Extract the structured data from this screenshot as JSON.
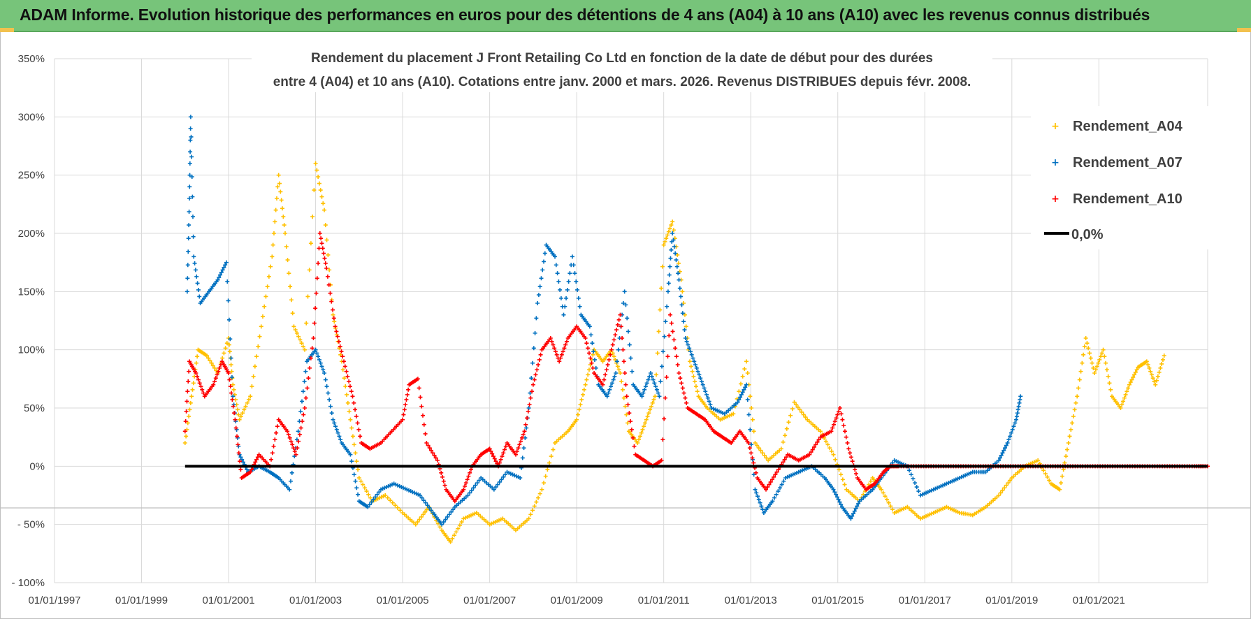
{
  "header": {
    "title": "ADAM Informe. Evolution historique des performances en euros pour des détentions de 4 ans (A04) à 10 ans (A10) avec les revenus connus distribués"
  },
  "chart_data": {
    "type": "scatter",
    "title_line1": "Rendement du placement J Front Retailing Co Ltd en fonction de la date de début pour des durées",
    "title_line2": "entre 4 (A04) et 10 ans (A10).  Cotations entre janv. 2000 et mars. 2026. Revenus DISTRIBUES depuis févr. 2008.",
    "x_axis": {
      "min_year": 1997.0,
      "max_year": 2023.5,
      "tick_years": [
        1997,
        1999,
        2001,
        2003,
        2005,
        2007,
        2009,
        2011,
        2013,
        2015,
        2017,
        2019,
        2021
      ],
      "tick_labels": [
        "01/01/1997",
        "01/01/1999",
        "01/01/2001",
        "01/01/2003",
        "01/01/2005",
        "01/01/2007",
        "01/01/2009",
        "01/01/2011",
        "01/01/2013",
        "01/01/2015",
        "01/01/2017",
        "01/01/2019",
        "01/01/2021"
      ]
    },
    "y_axis": {
      "min": -100,
      "max": 350,
      "tick_values": [
        -100,
        -50,
        0,
        50,
        100,
        150,
        200,
        250,
        300,
        350
      ],
      "tick_labels": [
        "- 100%",
        "- 50%",
        "0%",
        "50%",
        "100%",
        "150%",
        "200%",
        "250%",
        "300%",
        "350%"
      ]
    },
    "grid": true,
    "legend_position": "top-right",
    "legend": [
      {
        "key": "A04",
        "label": "Rendement_A04"
      },
      {
        "key": "A07",
        "label": "Rendement_A07"
      },
      {
        "key": "A10",
        "label": "Rendement_A10"
      },
      {
        "key": "zero",
        "label": "0,0%"
      }
    ],
    "colors": {
      "A04": "#ffc000",
      "A07": "#0070c0",
      "A10": "#ff0000",
      "zero": "#000000",
      "grid": "#d9d9d9"
    },
    "zero_line": {
      "value": 0,
      "x_start": 2000.0,
      "x_end": 2023.5
    },
    "series": [
      {
        "name": "Rendement_A04",
        "key": "A04",
        "points": [
          [
            2000.0,
            20
          ],
          [
            2000.15,
            60
          ],
          [
            2000.3,
            100
          ],
          [
            2000.5,
            95
          ],
          [
            2000.75,
            80
          ],
          [
            2001.0,
            110
          ],
          [
            2001.1,
            70
          ],
          [
            2001.25,
            40
          ],
          [
            2001.5,
            60
          ],
          [
            2001.75,
            120
          ],
          [
            2002.0,
            180
          ],
          [
            2002.15,
            250
          ],
          [
            2002.3,
            200
          ],
          [
            2002.5,
            120
          ],
          [
            2002.75,
            100
          ],
          [
            2003.0,
            260
          ],
          [
            2003.2,
            220
          ],
          [
            2003.4,
            130
          ],
          [
            2003.6,
            90
          ],
          [
            2003.8,
            40
          ],
          [
            2004.0,
            -10
          ],
          [
            2004.3,
            -30
          ],
          [
            2004.6,
            -25
          ],
          [
            2005.0,
            -40
          ],
          [
            2005.3,
            -50
          ],
          [
            2005.6,
            -35
          ],
          [
            2005.9,
            -55
          ],
          [
            2006.1,
            -65
          ],
          [
            2006.4,
            -45
          ],
          [
            2006.7,
            -40
          ],
          [
            2007.0,
            -50
          ],
          [
            2007.3,
            -45
          ],
          [
            2007.6,
            -55
          ],
          [
            2007.9,
            -45
          ],
          [
            2008.2,
            -20
          ],
          [
            2008.5,
            20
          ],
          [
            2008.8,
            30
          ],
          [
            2009.0,
            40
          ],
          [
            2009.2,
            70
          ],
          [
            2009.4,
            100
          ],
          [
            2009.6,
            90
          ],
          [
            2009.8,
            100
          ],
          [
            2010.0,
            80
          ],
          [
            2010.2,
            30
          ],
          [
            2010.4,
            20
          ],
          [
            2010.6,
            40
          ],
          [
            2010.8,
            60
          ],
          [
            2011.0,
            190
          ],
          [
            2011.2,
            210
          ],
          [
            2011.4,
            160
          ],
          [
            2011.6,
            90
          ],
          [
            2011.8,
            60
          ],
          [
            2012.0,
            50
          ],
          [
            2012.3,
            40
          ],
          [
            2012.6,
            45
          ],
          [
            2012.9,
            90
          ],
          [
            2013.1,
            20
          ],
          [
            2013.4,
            5
          ],
          [
            2013.7,
            15
          ],
          [
            2014.0,
            55
          ],
          [
            2014.3,
            40
          ],
          [
            2014.6,
            30
          ],
          [
            2014.9,
            10
          ],
          [
            2015.2,
            -20
          ],
          [
            2015.5,
            -30
          ],
          [
            2015.8,
            -10
          ],
          [
            2016.0,
            -20
          ],
          [
            2016.3,
            -40
          ],
          [
            2016.6,
            -35
          ],
          [
            2016.9,
            -45
          ],
          [
            2017.2,
            -40
          ],
          [
            2017.5,
            -35
          ],
          [
            2017.8,
            -40
          ],
          [
            2018.1,
            -42
          ],
          [
            2018.4,
            -35
          ],
          [
            2018.7,
            -25
          ],
          [
            2019.0,
            -10
          ],
          [
            2019.3,
            0
          ],
          [
            2019.6,
            5
          ],
          [
            2019.9,
            -15
          ],
          [
            2020.1,
            -20
          ],
          [
            2020.3,
            20
          ],
          [
            2020.5,
            60
          ],
          [
            2020.7,
            110
          ],
          [
            2020.9,
            80
          ],
          [
            2021.1,
            100
          ],
          [
            2021.3,
            60
          ],
          [
            2021.5,
            50
          ],
          [
            2021.7,
            70
          ],
          [
            2021.9,
            85
          ],
          [
            2022.1,
            90
          ],
          [
            2022.3,
            70
          ],
          [
            2022.5,
            95
          ]
        ]
      },
      {
        "name": "Rendement_A07",
        "key": "A07",
        "points": [
          [
            2000.05,
            150
          ],
          [
            2000.1,
            230
          ],
          [
            2000.13,
            300
          ],
          [
            2000.2,
            180
          ],
          [
            2000.35,
            140
          ],
          [
            2000.55,
            150
          ],
          [
            2000.75,
            160
          ],
          [
            2000.95,
            175
          ],
          [
            2001.1,
            60
          ],
          [
            2001.25,
            10
          ],
          [
            2001.45,
            -5
          ],
          [
            2001.7,
            0
          ],
          [
            2001.95,
            -5
          ],
          [
            2002.15,
            -10
          ],
          [
            2002.4,
            -20
          ],
          [
            2002.6,
            30
          ],
          [
            2002.8,
            90
          ],
          [
            2003.0,
            100
          ],
          [
            2003.2,
            80
          ],
          [
            2003.4,
            40
          ],
          [
            2003.6,
            20
          ],
          [
            2003.8,
            10
          ],
          [
            2004.0,
            -30
          ],
          [
            2004.2,
            -35
          ],
          [
            2004.5,
            -20
          ],
          [
            2004.8,
            -15
          ],
          [
            2005.1,
            -20
          ],
          [
            2005.4,
            -25
          ],
          [
            2005.7,
            -40
          ],
          [
            2005.9,
            -50
          ],
          [
            2006.2,
            -35
          ],
          [
            2006.5,
            -25
          ],
          [
            2006.8,
            -10
          ],
          [
            2007.1,
            -20
          ],
          [
            2007.4,
            -5
          ],
          [
            2007.7,
            -10
          ],
          [
            2007.9,
            50
          ],
          [
            2008.1,
            140
          ],
          [
            2008.3,
            190
          ],
          [
            2008.5,
            180
          ],
          [
            2008.7,
            130
          ],
          [
            2008.9,
            180
          ],
          [
            2009.1,
            130
          ],
          [
            2009.3,
            120
          ],
          [
            2009.5,
            70
          ],
          [
            2009.7,
            60
          ],
          [
            2009.9,
            80
          ],
          [
            2010.1,
            150
          ],
          [
            2010.3,
            70
          ],
          [
            2010.5,
            60
          ],
          [
            2010.7,
            80
          ],
          [
            2010.9,
            60
          ],
          [
            2011.1,
            150
          ],
          [
            2011.2,
            200
          ],
          [
            2011.35,
            160
          ],
          [
            2011.5,
            110
          ],
          [
            2011.7,
            90
          ],
          [
            2011.9,
            70
          ],
          [
            2012.1,
            50
          ],
          [
            2012.4,
            45
          ],
          [
            2012.7,
            55
          ],
          [
            2012.9,
            70
          ],
          [
            2013.1,
            -20
          ],
          [
            2013.3,
            -40
          ],
          [
            2013.5,
            -30
          ],
          [
            2013.8,
            -10
          ],
          [
            2014.1,
            -5
          ],
          [
            2014.4,
            0
          ],
          [
            2014.7,
            -10
          ],
          [
            2014.9,
            -20
          ],
          [
            2015.1,
            -35
          ],
          [
            2015.3,
            -45
          ],
          [
            2015.5,
            -30
          ],
          [
            2015.8,
            -20
          ],
          [
            2016.0,
            -10
          ],
          [
            2016.3,
            5
          ],
          [
            2016.6,
            0
          ],
          [
            2016.9,
            -25
          ],
          [
            2017.2,
            -20
          ],
          [
            2017.5,
            -15
          ],
          [
            2017.8,
            -10
          ],
          [
            2018.1,
            -5
          ],
          [
            2018.4,
            -5
          ],
          [
            2018.7,
            5
          ],
          [
            2018.9,
            20
          ],
          [
            2019.1,
            40
          ],
          [
            2019.2,
            60
          ]
        ]
      },
      {
        "name": "Rendement_A10",
        "key": "A10",
        "points": [
          [
            2000.0,
            30
          ],
          [
            2000.1,
            90
          ],
          [
            2000.25,
            80
          ],
          [
            2000.45,
            60
          ],
          [
            2000.65,
            70
          ],
          [
            2000.85,
            90
          ],
          [
            2001.0,
            80
          ],
          [
            2001.15,
            40
          ],
          [
            2001.3,
            -10
          ],
          [
            2001.5,
            -5
          ],
          [
            2001.7,
            10
          ],
          [
            2001.95,
            0
          ],
          [
            2002.15,
            40
          ],
          [
            2002.35,
            30
          ],
          [
            2002.55,
            10
          ],
          [
            2002.75,
            50
          ],
          [
            2002.95,
            110
          ],
          [
            2003.1,
            200
          ],
          [
            2003.25,
            170
          ],
          [
            2003.45,
            120
          ],
          [
            2003.65,
            90
          ],
          [
            2003.85,
            60
          ],
          [
            2004.05,
            20
          ],
          [
            2004.25,
            15
          ],
          [
            2004.5,
            20
          ],
          [
            2004.75,
            30
          ],
          [
            2005.0,
            40
          ],
          [
            2005.15,
            70
          ],
          [
            2005.35,
            75
          ],
          [
            2005.55,
            20
          ],
          [
            2005.8,
            5
          ],
          [
            2006.0,
            -20
          ],
          [
            2006.2,
            -30
          ],
          [
            2006.4,
            -20
          ],
          [
            2006.6,
            0
          ],
          [
            2006.8,
            10
          ],
          [
            2007.0,
            15
          ],
          [
            2007.2,
            0
          ],
          [
            2007.4,
            20
          ],
          [
            2007.6,
            10
          ],
          [
            2007.8,
            30
          ],
          [
            2008.0,
            70
          ],
          [
            2008.2,
            100
          ],
          [
            2008.4,
            110
          ],
          [
            2008.6,
            90
          ],
          [
            2008.8,
            110
          ],
          [
            2009.0,
            120
          ],
          [
            2009.2,
            110
          ],
          [
            2009.4,
            80
          ],
          [
            2009.6,
            70
          ],
          [
            2009.8,
            100
          ],
          [
            2010.0,
            130
          ],
          [
            2010.15,
            60
          ],
          [
            2010.35,
            10
          ],
          [
            2010.55,
            5
          ],
          [
            2010.75,
            0
          ],
          [
            2010.95,
            5
          ],
          [
            2011.15,
            130
          ],
          [
            2011.35,
            80
          ],
          [
            2011.55,
            50
          ],
          [
            2011.75,
            45
          ],
          [
            2011.95,
            40
          ],
          [
            2012.15,
            30
          ],
          [
            2012.35,
            25
          ],
          [
            2012.55,
            20
          ],
          [
            2012.75,
            30
          ],
          [
            2012.95,
            20
          ],
          [
            2013.15,
            -10
          ],
          [
            2013.35,
            -20
          ],
          [
            2013.6,
            -5
          ],
          [
            2013.85,
            10
          ],
          [
            2014.1,
            5
          ],
          [
            2014.35,
            10
          ],
          [
            2014.6,
            25
          ],
          [
            2014.85,
            30
          ],
          [
            2015.05,
            50
          ],
          [
            2015.25,
            15
          ],
          [
            2015.45,
            -10
          ],
          [
            2015.65,
            -20
          ],
          [
            2015.85,
            -15
          ],
          [
            2016.05,
            -5
          ],
          [
            2016.2,
            0
          ],
          [
            2016.4,
            0
          ],
          [
            2016.8,
            0
          ],
          [
            2017.2,
            0
          ],
          [
            2017.6,
            0
          ],
          [
            2018.0,
            0
          ],
          [
            2018.4,
            0
          ],
          [
            2018.8,
            0
          ],
          [
            2019.2,
            0
          ],
          [
            2019.6,
            0
          ],
          [
            2020.0,
            0
          ],
          [
            2020.4,
            0
          ],
          [
            2020.8,
            0
          ],
          [
            2021.2,
            0
          ],
          [
            2021.6,
            0
          ],
          [
            2022.0,
            0
          ],
          [
            2022.4,
            0
          ],
          [
            2022.8,
            0
          ],
          [
            2023.2,
            0
          ],
          [
            2023.5,
            0
          ]
        ]
      }
    ]
  }
}
